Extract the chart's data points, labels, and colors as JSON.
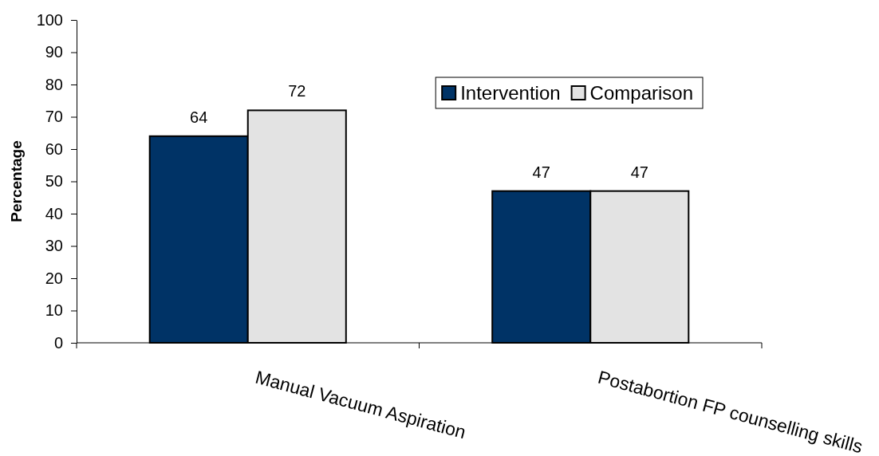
{
  "chart_data": {
    "type": "bar",
    "ylabel": "Percentage",
    "categories": [
      "Manual Vacuum Aspiration",
      "Postabortion FP counselling skills"
    ],
    "series": [
      {
        "name": "Intervention",
        "color": "#003366",
        "values": [
          64,
          47
        ]
      },
      {
        "name": "Comparison",
        "color": "#e3e3e3",
        "values": [
          72,
          47
        ]
      }
    ],
    "ylim": [
      0,
      100
    ],
    "yticks": [
      0,
      10,
      20,
      30,
      40,
      50,
      60,
      70,
      80,
      90,
      100
    ],
    "data_labels": true,
    "legend": "top right"
  }
}
